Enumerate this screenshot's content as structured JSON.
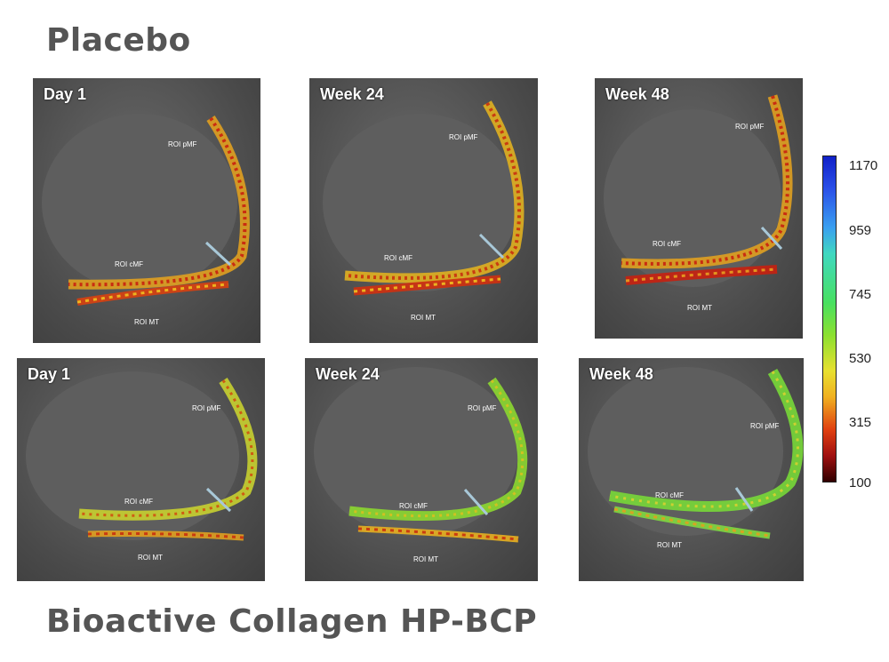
{
  "titles": {
    "top": "Placebo",
    "bottom": "Bioactive Collagen HP-BCP"
  },
  "panels": [
    {
      "label": "Day 1",
      "roi": {
        "pmf": "ROI  pMF",
        "cmf": "ROI  cMF",
        "mt": "ROI  MT"
      }
    },
    {
      "label": "Week 24",
      "roi": {
        "pmf": "ROI  pMF",
        "cmf": "ROI  cMF",
        "mt": "ROI  MT"
      }
    },
    {
      "label": "Week 48",
      "roi": {
        "pmf": "ROI  pMF",
        "cmf": "ROI  cMF",
        "mt": "ROI  MT"
      }
    },
    {
      "label": "Day 1",
      "roi": {
        "pmf": "ROI pMF",
        "cmf": "ROI cMF",
        "mt": "ROI  MT"
      }
    },
    {
      "label": "Week 24",
      "roi": {
        "pmf": "ROI pMF",
        "cmf": "ROI cMF",
        "mt": "ROI  MT"
      }
    },
    {
      "label": "Week 48",
      "roi": {
        "pmf": "ROI pMF",
        "cmf": "ROI cMF",
        "mt": "ROI  MT"
      }
    }
  ],
  "colorbar": {
    "ticks": [
      "1170",
      "959",
      "745",
      "530",
      "315",
      "100"
    ],
    "colors": {
      "high": "#1020c8",
      "mid_high": "#40d8c0",
      "mid": "#48e060",
      "mid_low": "#e8e030",
      "low_mid": "#e04010",
      "low": "#300000"
    }
  }
}
